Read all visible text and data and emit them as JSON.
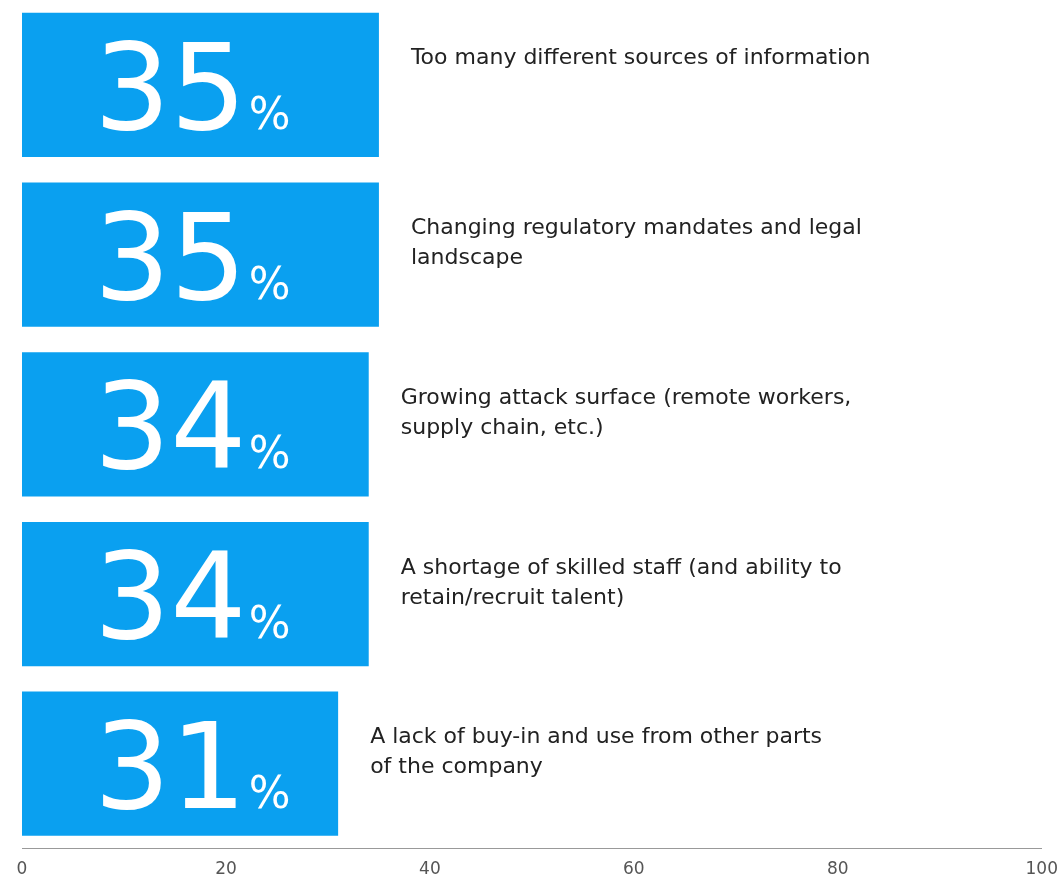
{
  "chart_data": {
    "type": "bar",
    "orientation": "horizontal",
    "categories": [
      "Too many different sources of information",
      "Changing regulatory mandates and legal landscape",
      "Growing attack surface (remote workers, supply chain, etc.)",
      "A shortage of skilled staff (and ability to retain/recruit talent)",
      "A lack of buy-in and use from other parts of the company"
    ],
    "values": [
      35,
      35,
      34,
      34,
      31
    ],
    "value_labels": [
      "35%",
      "35%",
      "34%",
      "34%",
      "31%"
    ],
    "color": "#0aa0f0",
    "xlim": [
      0,
      100
    ],
    "xticks": [
      0,
      20,
      40,
      60,
      80,
      100
    ],
    "grid": false,
    "legend": false
  }
}
